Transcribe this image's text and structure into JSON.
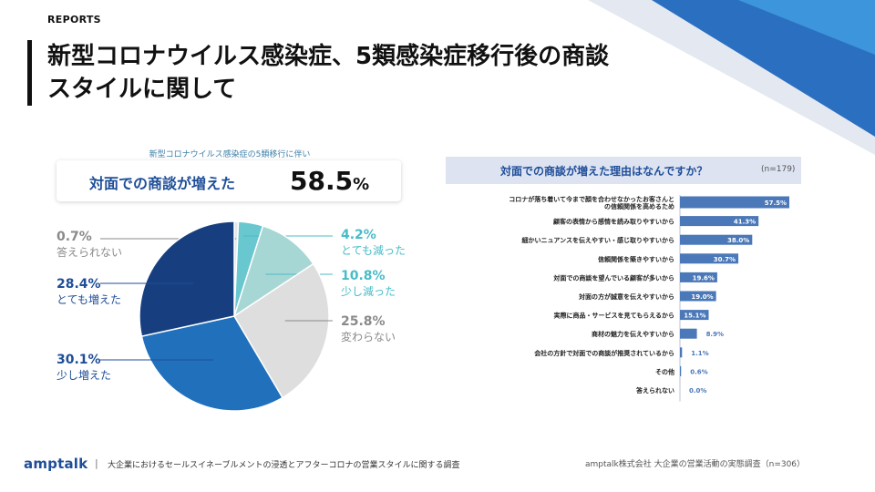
{
  "header": {
    "kicker": "REPORTS",
    "title_line1": "新型コロナウイルス感染症、5類感染症移行後の商談",
    "title_line2": "スタイルに関して"
  },
  "callout": {
    "caption": "新型コロナウイルス感染症の5類移行に伴い",
    "label": "対面での商談が増えた",
    "value": "58.5",
    "unit": "%"
  },
  "bar_header": {
    "title": "対面での商談が増えた理由はなんですか？",
    "n": "(n=179)"
  },
  "footer": {
    "logo": "amptalk",
    "separator": "|",
    "left": "大企業におけるセールスイネーブルメントの浸透とアフターコロナの営業スタイルに関する調査",
    "right": "amptalk株式会社 大企業の営業活動の実態調査（n=306）"
  },
  "colors": {
    "accent": "#1f4e99",
    "teal": "#48bcc7"
  },
  "chart_data": [
    {
      "type": "pie",
      "title": "新型コロナウイルス感染症の5類移行に伴い",
      "start_angle_deg": -90,
      "slices": [
        {
          "label": "答えられない",
          "pct": "0.7%",
          "value": 0.7,
          "color": "#e6e6e6",
          "text_color": "#8a8a8a"
        },
        {
          "label": "とても減った",
          "pct": "4.2%",
          "value": 4.2,
          "color": "#69c7cf",
          "text_color": "#48bcc7"
        },
        {
          "label": "少し減った",
          "pct": "10.8%",
          "value": 10.8,
          "color": "#a7d7d4",
          "text_color": "#48bcc7"
        },
        {
          "label": "変わらない",
          "pct": "25.8%",
          "value": 25.8,
          "color": "#dedede",
          "text_color": "#8a8a8a"
        },
        {
          "label": "少し増えた",
          "pct": "30.1%",
          "value": 30.1,
          "color": "#2170bc",
          "text_color": "#1f4e99"
        },
        {
          "label": "とても増えた",
          "pct": "28.4%",
          "value": 28.4,
          "color": "#173f80",
          "text_color": "#1f4e99"
        }
      ]
    },
    {
      "type": "bar",
      "orientation": "horizontal",
      "title": "対面での商談が増えた理由はなんですか？",
      "n": "(n=179)",
      "xlim": [
        0,
        60
      ],
      "color": "#4a78b8",
      "categories": [
        "コロナが落ち着いて今まで顔を合わせなかったお客さんと の信頼関係を高めるため",
        "顧客の表情から感情を読み取りやすいから",
        "細かいニュアンスを伝えやすい・感じ取りやすいから",
        "信頼関係を築きやすいから",
        "対面での商談を望んでいる顧客が多いから",
        "対面の方が誠意を伝えやすいから",
        "実際に商品・サービスを見てもらえるから",
        "商材の魅力を伝えやすいから",
        "会社の方針で対面での商談が推奨されているから",
        "その他",
        "答えられない"
      ],
      "values": [
        57.5,
        41.3,
        38.0,
        30.7,
        19.6,
        19.0,
        15.1,
        8.9,
        1.1,
        0.6,
        0.0
      ],
      "value_labels": [
        "57.5%",
        "41.3%",
        "38.0%",
        "30.7%",
        "19.6%",
        "19.0%",
        "15.1%",
        "8.9%",
        "1.1%",
        "0.6%",
        "0.0%"
      ]
    }
  ]
}
